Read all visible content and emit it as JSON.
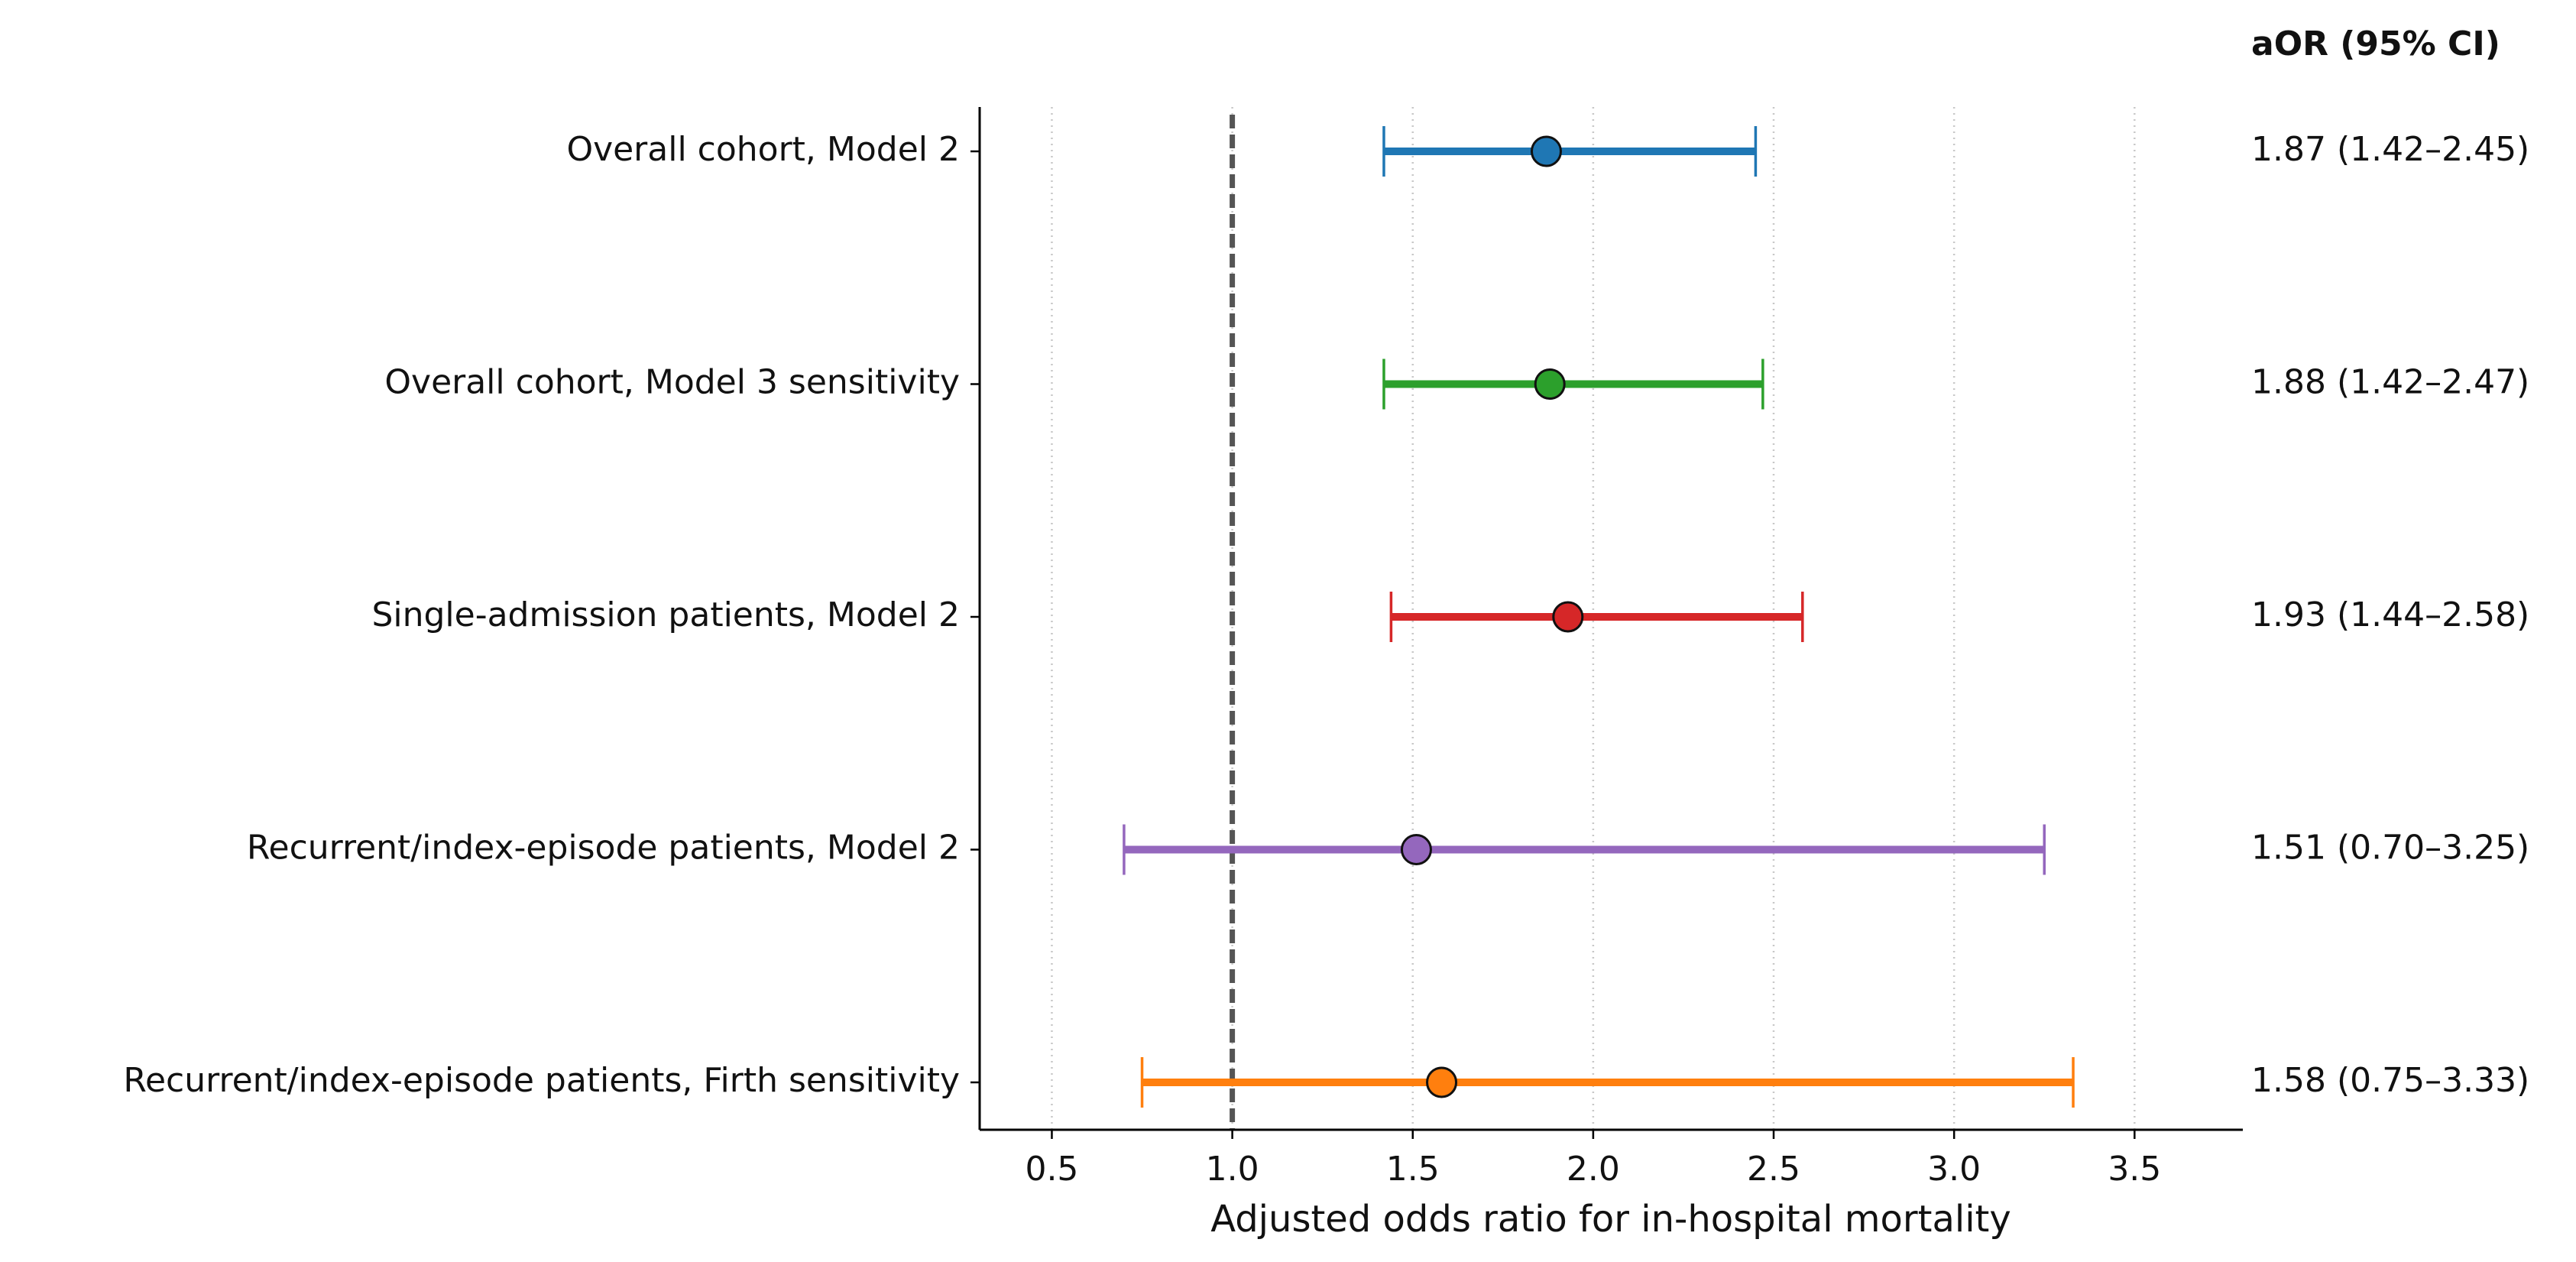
{
  "chart_data": {
    "type": "forest",
    "xlabel": "Adjusted odds ratio for in-hospital mortality",
    "ci_header": "aOR (95% CI)",
    "categories": [
      "Overall cohort, Model 2",
      "Overall cohort, Model 3 sensitivity",
      "Single-admission patients, Model 2",
      "Recurrent/index-episode patients, Model 2",
      "Recurrent/index-episode patients, Firth sensitivity"
    ],
    "values": [
      1.87,
      1.88,
      1.93,
      1.51,
      1.58
    ],
    "lower": [
      1.42,
      1.42,
      1.44,
      0.7,
      0.75
    ],
    "upper": [
      2.45,
      2.47,
      2.58,
      3.25,
      3.33
    ],
    "value_labels": [
      "1.87 (1.42–2.45)",
      "1.88 (1.42–2.47)",
      "1.93 (1.44–2.58)",
      "1.51 (0.70–3.25)",
      "1.58 (0.75–3.33)"
    ],
    "colors": [
      "#1f77b4",
      "#2ca02c",
      "#d62728",
      "#9467bd",
      "#ff7f0e"
    ],
    "xlim": [
      0.3,
      3.8
    ],
    "xticks": [
      0.5,
      {
        "value": 1,
        "label": "1.0"
      },
      1.5,
      {
        "value": 2,
        "label": "2.0"
      },
      2.5,
      {
        "value": 3,
        "label": "3.0"
      },
      3.5
    ],
    "ref_line": 1,
    "grid": true
  }
}
